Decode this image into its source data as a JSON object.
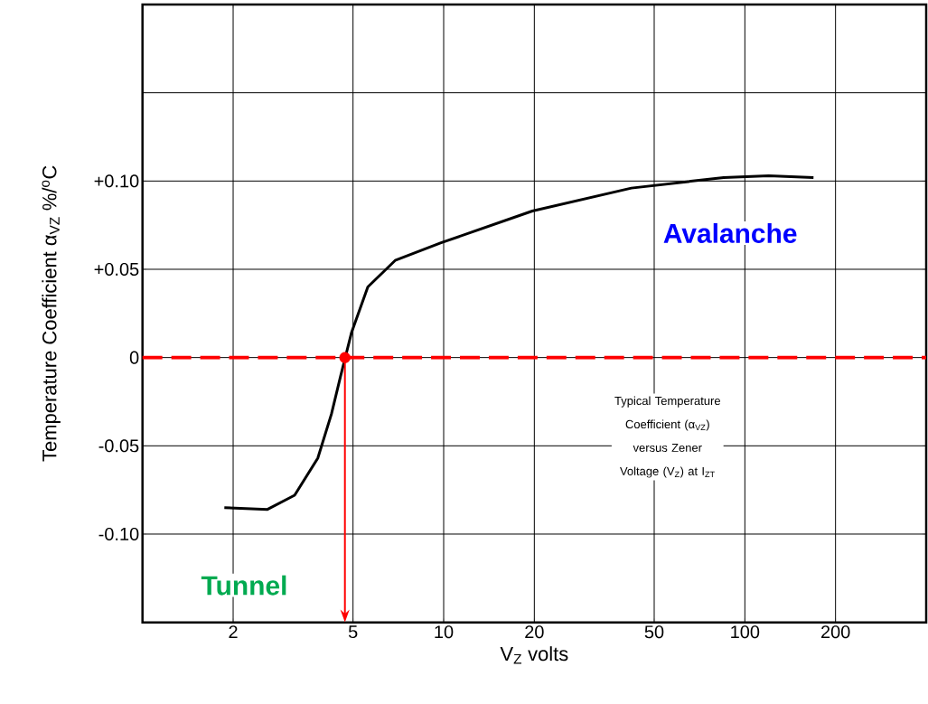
{
  "chart_data": {
    "type": "line",
    "xlabel": "V$_{Z}$ volts",
    "ylabel": "Temperature Coefficient α$_{VZ}$ %/$^{o}$C",
    "log": "x",
    "grid": true,
    "xlim": [
      1,
      400
    ],
    "ylim": [
      -0.15,
      0.2
    ],
    "xticks": [
      2,
      5,
      10,
      20,
      50,
      100,
      200
    ],
    "yticks": [
      {
        "value": -0.1,
        "label": "-0.10"
      },
      -0.05,
      0,
      {
        "value": 0.05,
        "label": "+0.05"
      },
      {
        "value": 0.1,
        "label": "+0.10"
      },
      {
        "value": 0.15,
        "label": null
      }
    ],
    "series": [
      {
        "color": "#000000",
        "x": [
          1.87,
          2.6,
          3.2,
          3.82,
          4.24,
          4.54,
          4.94,
          5.6,
          6.9,
          9.8,
          19.7,
          42,
          85,
          120,
          169
        ],
        "values": [
          -0.085,
          -0.086,
          -0.078,
          -0.057,
          -0.032,
          -0.011,
          0.014,
          0.04,
          0.055,
          0.065,
          0.083,
          0.096,
          0.102,
          0.103,
          0.102
        ]
      },
      {
        "type": "scatter",
        "color": "#ff0000",
        "marker": "circle",
        "x": [
          4.7
        ],
        "values": [
          0
        ]
      }
    ],
    "ref_lines": [
      {
        "axis": "y",
        "value": 0,
        "color": "#ff0000",
        "line_style": "dashed"
      }
    ],
    "annotations": [
      "Avalanche",
      "Tunnel",
      "Typical Temperature Coefficient (α$_{VZ}$) versus Zener Voltage (V$_{Z}$) at I$_{ZT}$"
    ]
  }
}
